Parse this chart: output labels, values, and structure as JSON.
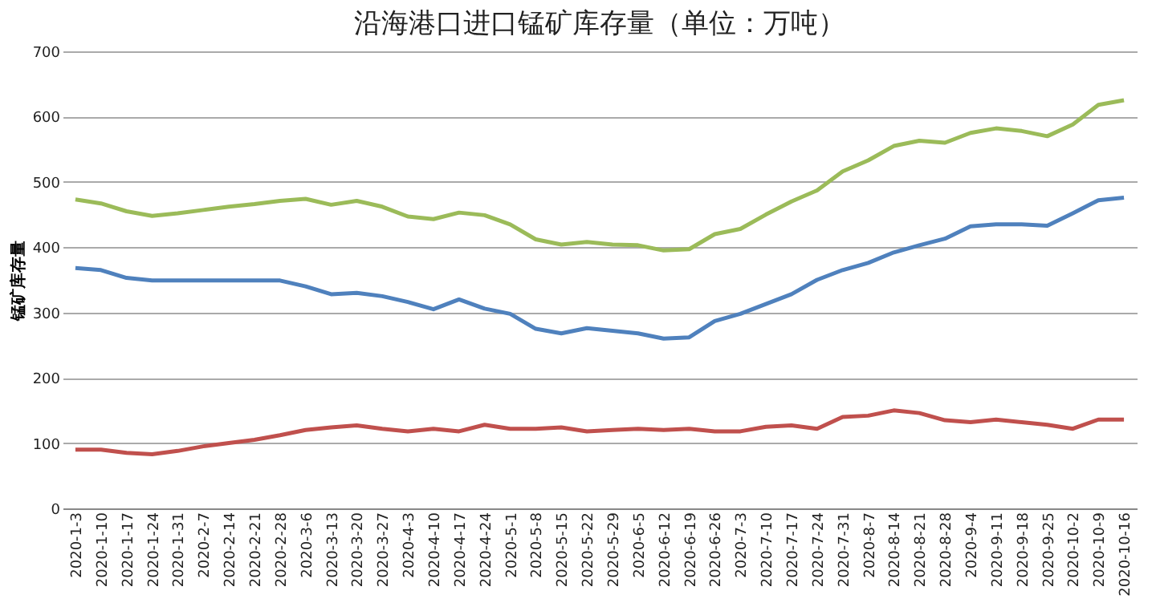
{
  "chart_data": {
    "type": "line",
    "title": "沿海港口进口锰矿库存量（单位：万吨）",
    "ylabel": "锰矿库存量",
    "categories": [
      "2020-1-3",
      "2020-1-10",
      "2020-1-17",
      "2020-1-24",
      "2020-1-31",
      "2020-2-7",
      "2020-2-14",
      "2020-2-21",
      "2020-2-28",
      "2020-3-6",
      "2020-3-13",
      "2020-3-20",
      "2020-3-27",
      "2020-4-3",
      "2020-4-10",
      "2020-4-17",
      "2020-4-24",
      "2020-5-1",
      "2020-5-8",
      "2020-5-15",
      "2020-5-22",
      "2020-5-29",
      "2020-6-5",
      "2020-6-12",
      "2020-6-19",
      "2020-6-26",
      "2020-7-3",
      "2020-7-10",
      "2020-7-17",
      "2020-7-24",
      "2020-7-31",
      "2020-8-7",
      "2020-8-14",
      "2020-8-21",
      "2020-8-28",
      "2020-9-4",
      "2020-9-11",
      "2020-9-18",
      "2020-9-25",
      "2020-10-2",
      "2020-10-9",
      "2020-10-16"
    ],
    "series": [
      {
        "color": "#9bbb59",
        "values": [
          473,
          467,
          455,
          448,
          452,
          457,
          462,
          466,
          471,
          474,
          465,
          471,
          462,
          447,
          443,
          453,
          449,
          435,
          412,
          404,
          408,
          404,
          403,
          395,
          397,
          420,
          428,
          450,
          470,
          487,
          516,
          533,
          555,
          563,
          560,
          575,
          582,
          578,
          570,
          588,
          618,
          625
        ]
      },
      {
        "color": "#4f81bd",
        "values": [
          368,
          365,
          353,
          349,
          349,
          349,
          349,
          349,
          349,
          340,
          328,
          330,
          325,
          316,
          305,
          320,
          306,
          298,
          275,
          268,
          276,
          272,
          268,
          260,
          262,
          287,
          298,
          313,
          328,
          350,
          365,
          376,
          392,
          403,
          413,
          432,
          435,
          435,
          433,
          452,
          472,
          476
        ]
      },
      {
        "color": "#c0504d",
        "values": [
          90,
          90,
          85,
          83,
          88,
          95,
          100,
          105,
          112,
          120,
          124,
          127,
          122,
          118,
          122,
          118,
          128,
          122,
          122,
          124,
          118,
          120,
          122,
          120,
          122,
          118,
          118,
          125,
          127,
          122,
          140,
          142,
          150,
          146,
          135,
          132,
          136,
          132,
          128,
          122,
          136,
          136
        ]
      }
    ],
    "ylim": [
      0,
      700
    ],
    "yticks": [
      0,
      100,
      200,
      300,
      400,
      500,
      600,
      700
    ],
    "grid": "y",
    "legend": false,
    "marker": "none",
    "line_style": "solid"
  }
}
